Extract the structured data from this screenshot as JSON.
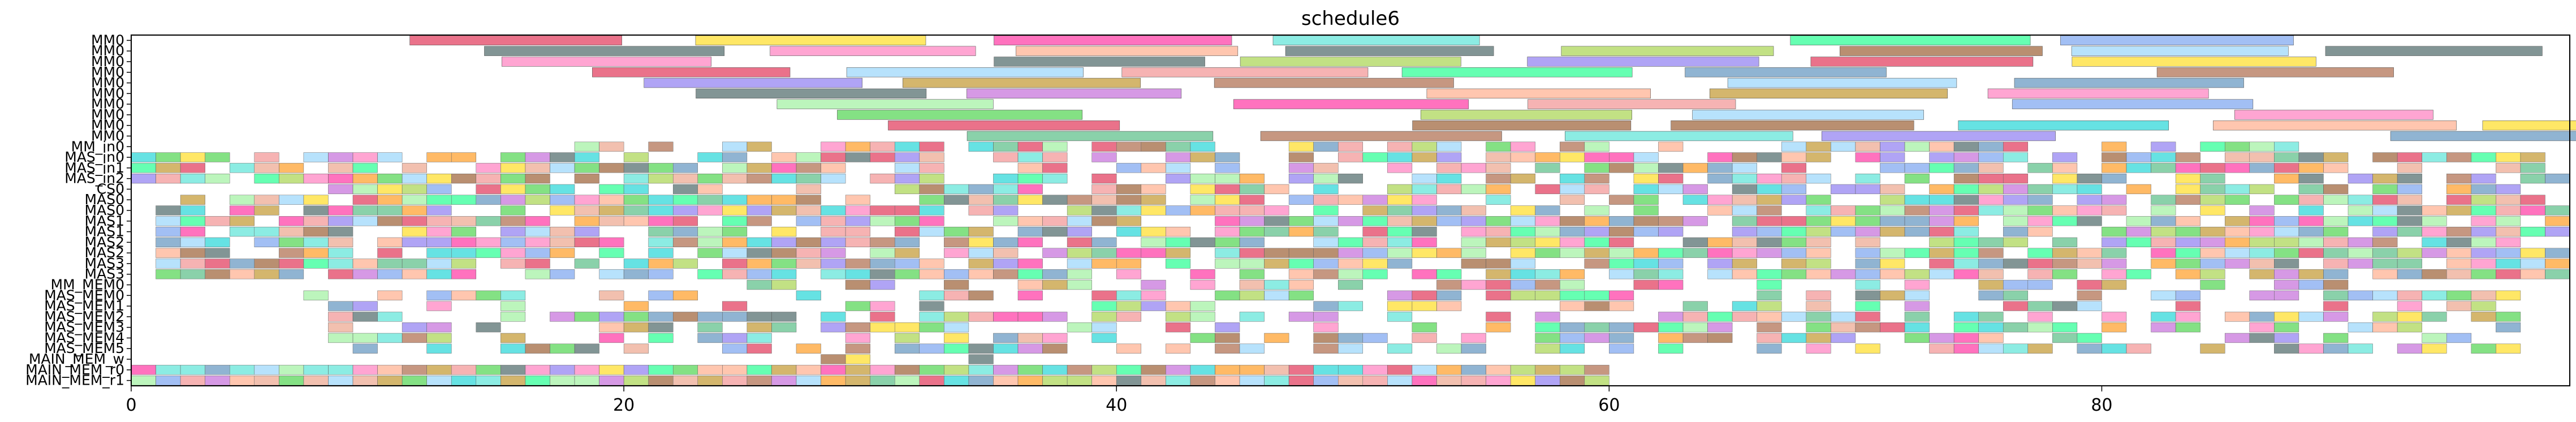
{
  "chart_data": {
    "type": "gantt",
    "title": "schedule6",
    "xlabel": "",
    "ylabel": "",
    "xlim": [
      0,
      99
    ],
    "grid": false,
    "x_ticks": [
      0,
      20,
      40,
      60,
      80
    ],
    "rows": [
      "MM0",
      "MM0",
      "MM0",
      "MM0",
      "MM0",
      "MM0",
      "MM0",
      "MM0",
      "MM0",
      "MM0",
      "MM_in0",
      "MAS_in0",
      "MAS_in1",
      "MAS_in2",
      "CS0",
      "MAS0",
      "MAS0",
      "MAS1",
      "MAS1",
      "MAS2",
      "MAS2",
      "MAS3",
      "MAS3",
      "MM_MEM0",
      "MAS_MEM0",
      "MAS_MEM1",
      "MAS_MEM2",
      "MAS_MEM3",
      "MAS_MEM4",
      "MAS_MEM5",
      "MAIN_MEM_w",
      "MAIN_MEM_r0",
      "MAIN_MEM_r1"
    ],
    "notes": "Each row holds many unit-length task bars in random colors; bar positions are approximated."
  }
}
